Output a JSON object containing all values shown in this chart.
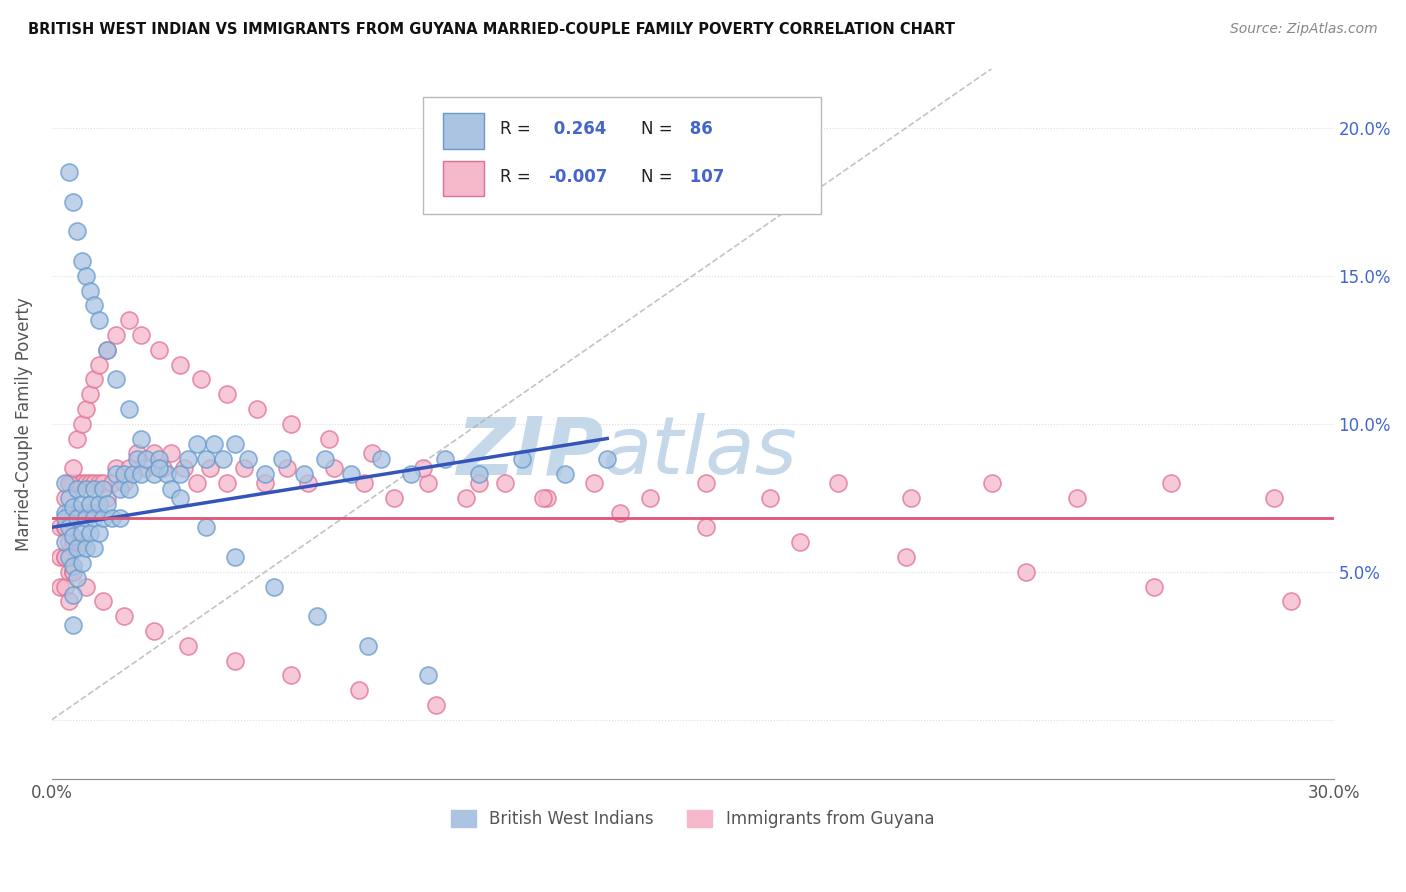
{
  "title": "BRITISH WEST INDIAN VS IMMIGRANTS FROM GUYANA MARRIED-COUPLE FAMILY POVERTY CORRELATION CHART",
  "source": "Source: ZipAtlas.com",
  "ylabel": "Married-Couple Family Poverty",
  "xmin": 0.0,
  "xmax": 0.3,
  "ymin": -0.02,
  "ymax": 0.22,
  "yticks": [
    0.0,
    0.05,
    0.1,
    0.15,
    0.2
  ],
  "ytick_labels_right": [
    "",
    "5.0%",
    "10.0%",
    "15.0%",
    "20.0%"
  ],
  "series1_label": "British West Indians",
  "series1_R": "0.264",
  "series1_N": "86",
  "series1_color": "#aac4e2",
  "series1_edge": "#6699cc",
  "series2_label": "Immigrants from Guyana",
  "series2_R": "-0.007",
  "series2_N": "107",
  "series2_color": "#f5b8cb",
  "series2_edge": "#e07090",
  "trend1_color": "#3355bb",
  "trend2_color": "#dd5577",
  "ref_line_color": "#aaaaaa",
  "watermark_zip": "ZIP",
  "watermark_atlas": "atlas",
  "watermark_color_zip": "#c8d8ea",
  "watermark_color_atlas": "#c8d8ea",
  "legend_color": "#4466cc",
  "bwi_x": [
    0.003,
    0.003,
    0.003,
    0.003,
    0.004,
    0.004,
    0.004,
    0.005,
    0.005,
    0.005,
    0.005,
    0.005,
    0.006,
    0.006,
    0.006,
    0.006,
    0.007,
    0.007,
    0.007,
    0.008,
    0.008,
    0.008,
    0.009,
    0.009,
    0.01,
    0.01,
    0.01,
    0.011,
    0.011,
    0.012,
    0.012,
    0.013,
    0.014,
    0.015,
    0.016,
    0.016,
    0.017,
    0.018,
    0.019,
    0.02,
    0.021,
    0.022,
    0.024,
    0.025,
    0.027,
    0.028,
    0.03,
    0.032,
    0.034,
    0.036,
    0.038,
    0.04,
    0.043,
    0.046,
    0.05,
    0.054,
    0.059,
    0.064,
    0.07,
    0.077,
    0.084,
    0.092,
    0.1,
    0.11,
    0.12,
    0.13,
    0.004,
    0.005,
    0.006,
    0.007,
    0.008,
    0.009,
    0.01,
    0.011,
    0.013,
    0.015,
    0.018,
    0.021,
    0.025,
    0.03,
    0.036,
    0.043,
    0.052,
    0.062,
    0.074,
    0.088
  ],
  "bwi_y": [
    0.07,
    0.08,
    0.068,
    0.06,
    0.075,
    0.065,
    0.055,
    0.072,
    0.062,
    0.052,
    0.042,
    0.032,
    0.078,
    0.068,
    0.058,
    0.048,
    0.073,
    0.063,
    0.053,
    0.078,
    0.068,
    0.058,
    0.073,
    0.063,
    0.078,
    0.068,
    0.058,
    0.073,
    0.063,
    0.078,
    0.068,
    0.073,
    0.068,
    0.083,
    0.078,
    0.068,
    0.083,
    0.078,
    0.083,
    0.088,
    0.083,
    0.088,
    0.083,
    0.088,
    0.083,
    0.078,
    0.083,
    0.088,
    0.093,
    0.088,
    0.093,
    0.088,
    0.093,
    0.088,
    0.083,
    0.088,
    0.083,
    0.088,
    0.083,
    0.088,
    0.083,
    0.088,
    0.083,
    0.088,
    0.083,
    0.088,
    0.185,
    0.175,
    0.165,
    0.155,
    0.15,
    0.145,
    0.14,
    0.135,
    0.125,
    0.115,
    0.105,
    0.095,
    0.085,
    0.075,
    0.065,
    0.055,
    0.045,
    0.035,
    0.025,
    0.015
  ],
  "guyana_x": [
    0.002,
    0.002,
    0.002,
    0.003,
    0.003,
    0.003,
    0.003,
    0.004,
    0.004,
    0.004,
    0.004,
    0.004,
    0.005,
    0.005,
    0.005,
    0.005,
    0.006,
    0.006,
    0.006,
    0.007,
    0.007,
    0.007,
    0.008,
    0.008,
    0.009,
    0.009,
    0.01,
    0.01,
    0.011,
    0.012,
    0.013,
    0.014,
    0.015,
    0.017,
    0.018,
    0.02,
    0.022,
    0.024,
    0.026,
    0.028,
    0.031,
    0.034,
    0.037,
    0.041,
    0.045,
    0.05,
    0.055,
    0.06,
    0.066,
    0.073,
    0.08,
    0.088,
    0.097,
    0.106,
    0.116,
    0.127,
    0.14,
    0.153,
    0.168,
    0.184,
    0.201,
    0.22,
    0.24,
    0.262,
    0.286,
    0.003,
    0.004,
    0.005,
    0.006,
    0.007,
    0.008,
    0.009,
    0.01,
    0.011,
    0.013,
    0.015,
    0.018,
    0.021,
    0.025,
    0.03,
    0.035,
    0.041,
    0.048,
    0.056,
    0.065,
    0.075,
    0.087,
    0.1,
    0.115,
    0.133,
    0.153,
    0.175,
    0.2,
    0.228,
    0.258,
    0.29,
    0.003,
    0.005,
    0.008,
    0.012,
    0.017,
    0.024,
    0.032,
    0.043,
    0.056,
    0.072,
    0.09
  ],
  "guyana_y": [
    0.065,
    0.055,
    0.045,
    0.075,
    0.065,
    0.055,
    0.045,
    0.08,
    0.07,
    0.06,
    0.05,
    0.04,
    0.08,
    0.07,
    0.06,
    0.05,
    0.08,
    0.07,
    0.06,
    0.08,
    0.07,
    0.06,
    0.08,
    0.07,
    0.08,
    0.07,
    0.08,
    0.07,
    0.08,
    0.08,
    0.075,
    0.08,
    0.085,
    0.08,
    0.085,
    0.09,
    0.085,
    0.09,
    0.085,
    0.09,
    0.085,
    0.08,
    0.085,
    0.08,
    0.085,
    0.08,
    0.085,
    0.08,
    0.085,
    0.08,
    0.075,
    0.08,
    0.075,
    0.08,
    0.075,
    0.08,
    0.075,
    0.08,
    0.075,
    0.08,
    0.075,
    0.08,
    0.075,
    0.08,
    0.075,
    0.065,
    0.08,
    0.085,
    0.095,
    0.1,
    0.105,
    0.11,
    0.115,
    0.12,
    0.125,
    0.13,
    0.135,
    0.13,
    0.125,
    0.12,
    0.115,
    0.11,
    0.105,
    0.1,
    0.095,
    0.09,
    0.085,
    0.08,
    0.075,
    0.07,
    0.065,
    0.06,
    0.055,
    0.05,
    0.045,
    0.04,
    0.055,
    0.05,
    0.045,
    0.04,
    0.035,
    0.03,
    0.025,
    0.02,
    0.015,
    0.01,
    0.005
  ],
  "trend1_x0": 0.0,
  "trend1_x1": 0.13,
  "trend1_y0": 0.065,
  "trend1_y1": 0.095,
  "trend2_y": 0.068
}
